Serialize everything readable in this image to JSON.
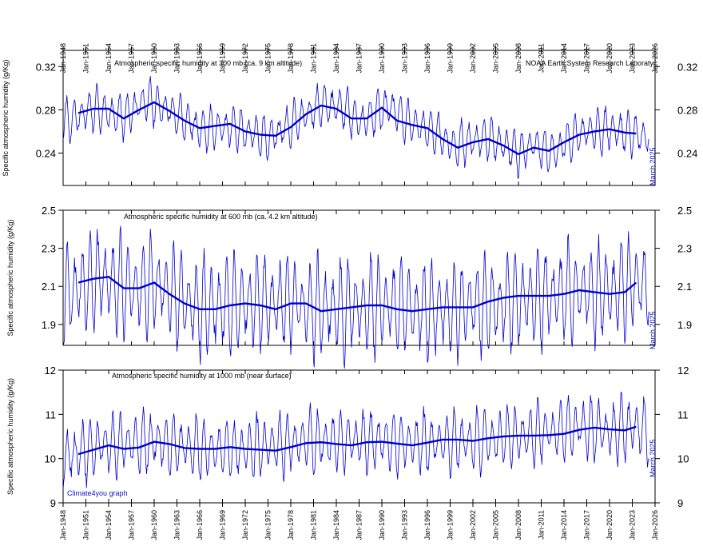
{
  "chart_data": [
    {
      "type": "line",
      "title": "Atmospheric specific humidity at 300 mb (ca. 9 km altitude)",
      "ylabel": "Specific atmospheric humidity (g/Kg)",
      "source_label": "NOAA Earth System Research Laboraty",
      "end_label": "March 2025",
      "ylim": [
        0.21,
        0.335
      ],
      "yticks": [
        0.24,
        0.28,
        0.32
      ],
      "ytick_labels": [
        "0.24",
        "0.28",
        "0.32"
      ],
      "monthly_mean_at": [
        1948.0,
        1952.0,
        1956.0,
        1959.0,
        1962.0,
        1966.0,
        1970.0,
        1975.0,
        1978.0,
        1982.0,
        1985.0,
        1987.0,
        1991.0,
        1994.0,
        1997.0,
        1999.5,
        2001.0,
        2004.0,
        2008.0,
        2010.0,
        2012.5,
        2016.0,
        2020.0,
        2023.0,
        2025.2
      ],
      "monthly_mean": [
        0.268,
        0.281,
        0.274,
        0.289,
        0.28,
        0.262,
        0.264,
        0.254,
        0.266,
        0.285,
        0.282,
        0.268,
        0.284,
        0.266,
        0.26,
        0.246,
        0.25,
        0.254,
        0.24,
        0.248,
        0.24,
        0.258,
        0.262,
        0.258,
        0.255
      ],
      "seasonal_amplitude": 0.016,
      "smoothed_x": [
        1950,
        1952,
        1954,
        1956,
        1958,
        1960,
        1962,
        1964,
        1966,
        1968,
        1970,
        1972,
        1974,
        1976,
        1978,
        1980,
        1982,
        1984,
        1986,
        1988,
        1990,
        1992,
        1994,
        1996,
        1998,
        2000,
        2002,
        2004,
        2006,
        2008,
        2010,
        2012,
        2014,
        2016,
        2018,
        2020,
        2022,
        2023.5
      ],
      "smoothed_y": [
        0.277,
        0.281,
        0.281,
        0.272,
        0.28,
        0.287,
        0.279,
        0.27,
        0.263,
        0.265,
        0.267,
        0.26,
        0.257,
        0.256,
        0.264,
        0.276,
        0.284,
        0.281,
        0.272,
        0.272,
        0.282,
        0.27,
        0.266,
        0.263,
        0.253,
        0.245,
        0.25,
        0.253,
        0.247,
        0.239,
        0.245,
        0.242,
        0.25,
        0.257,
        0.26,
        0.262,
        0.259,
        0.258
      ]
    },
    {
      "type": "line",
      "title": "Atmospheric specific humidity at 600 mb (ca. 4.2 km altitude)",
      "ylabel": "Specific atmospheric humidity (g/Kg)",
      "end_label": "March 2025",
      "ylim": [
        1.79,
        2.5
      ],
      "yticks": [
        1.9,
        2.1,
        2.3,
        2.5
      ],
      "ytick_labels": [
        "1.9",
        "2.1",
        "2.3",
        "2.5"
      ],
      "monthly_mean_at": [
        1948.0,
        1953.0,
        1957.0,
        1960.0,
        1966.0,
        1972.0,
        1978.0,
        1981.0,
        1990.0,
        1994.0,
        2000.0,
        2004.0,
        2010.0,
        2016.0,
        2020.0,
        2023.0,
        2025.2
      ],
      "monthly_mean": [
        2.05,
        2.15,
        2.08,
        2.12,
        1.98,
        2.01,
        2.02,
        1.98,
        2.0,
        1.98,
        1.98,
        2.0,
        2.04,
        2.07,
        2.07,
        2.12,
        2.1
      ],
      "seasonal_amplitude": 0.2,
      "smoothed_x": [
        1950,
        1952,
        1954,
        1956,
        1958,
        1960,
        1962,
        1964,
        1966,
        1968,
        1970,
        1972,
        1974,
        1976,
        1978,
        1980,
        1982,
        1984,
        1986,
        1988,
        1990,
        1992,
        1994,
        1996,
        1998,
        2000,
        2002,
        2004,
        2006,
        2008,
        2010,
        2012,
        2014,
        2016,
        2018,
        2020,
        2022,
        2023.5
      ],
      "smoothed_y": [
        2.12,
        2.14,
        2.15,
        2.09,
        2.09,
        2.12,
        2.06,
        2.01,
        1.98,
        1.98,
        2.0,
        2.01,
        2.0,
        1.98,
        2.01,
        2.01,
        1.97,
        1.98,
        1.99,
        2.0,
        2.0,
        1.98,
        1.97,
        1.98,
        1.99,
        1.99,
        1.99,
        2.02,
        2.04,
        2.05,
        2.05,
        2.05,
        2.06,
        2.08,
        2.07,
        2.06,
        2.07,
        2.12
      ]
    },
    {
      "type": "line",
      "title": "Atmospheric specific humidity at 1000 mb (near surface)",
      "ylabel": "Specific atmospheric humidity (g/Kg)",
      "credit_label": "Climate4you graph",
      "end_label": "March 2025",
      "ylim": [
        9.0,
        12.0
      ],
      "yticks": [
        9,
        10,
        11,
        12
      ],
      "ytick_labels": [
        "9",
        "10",
        "11",
        "12"
      ],
      "monthly_mean_at": [
        1948.0,
        1953.0,
        1960.0,
        1966.0,
        1972.0,
        1980.0,
        1990.0,
        1996.0,
        2002.0,
        2008.0,
        2016.0,
        2020.0,
        2023.0,
        2025.2
      ],
      "monthly_mean": [
        10.05,
        10.3,
        10.4,
        10.22,
        10.2,
        10.4,
        10.4,
        10.35,
        10.4,
        10.5,
        10.7,
        10.62,
        10.72,
        10.65
      ],
      "seasonal_amplitude": 0.55,
      "smoothed_x": [
        1950,
        1952,
        1954,
        1956,
        1958,
        1960,
        1962,
        1964,
        1966,
        1968,
        1970,
        1972,
        1974,
        1976,
        1978,
        1980,
        1982,
        1984,
        1986,
        1988,
        1990,
        1992,
        1994,
        1996,
        1998,
        2000,
        2002,
        2004,
        2006,
        2008,
        2010,
        2012,
        2014,
        2016,
        2018,
        2020,
        2022,
        2023.5
      ],
      "smoothed_y": [
        10.1,
        10.2,
        10.3,
        10.22,
        10.25,
        10.38,
        10.33,
        10.24,
        10.22,
        10.22,
        10.26,
        10.22,
        10.2,
        10.18,
        10.26,
        10.35,
        10.37,
        10.33,
        10.3,
        10.37,
        10.38,
        10.34,
        10.3,
        10.36,
        10.43,
        10.43,
        10.4,
        10.46,
        10.5,
        10.52,
        10.52,
        10.53,
        10.56,
        10.65,
        10.7,
        10.66,
        10.64,
        10.72
      ]
    }
  ],
  "x_axis": {
    "range": [
      1948,
      2026
    ],
    "tick_labels": [
      "Jan-1948",
      "Jan-1951",
      "Jan-1954",
      "Jan-1957",
      "Jan-1960",
      "Jan-1963",
      "Jan-1966",
      "Jan-1969",
      "Jan-1972",
      "Jan-1975",
      "Jan-1978",
      "Jan-1981",
      "Jan-1984",
      "Jan-1987",
      "Jan-1990",
      "Jan-1993",
      "Jan-1996",
      "Jan-1999",
      "Jan-2002",
      "Jan-2005",
      "Jan-2008",
      "Jan-2011",
      "Jan-2014",
      "Jan-2017",
      "Jan-2020",
      "Jan-2023",
      "Jan-2026"
    ]
  },
  "colors": {
    "monthly": "#0000cc",
    "smoothed": "#0000cc",
    "note_text": "#1010c8"
  }
}
